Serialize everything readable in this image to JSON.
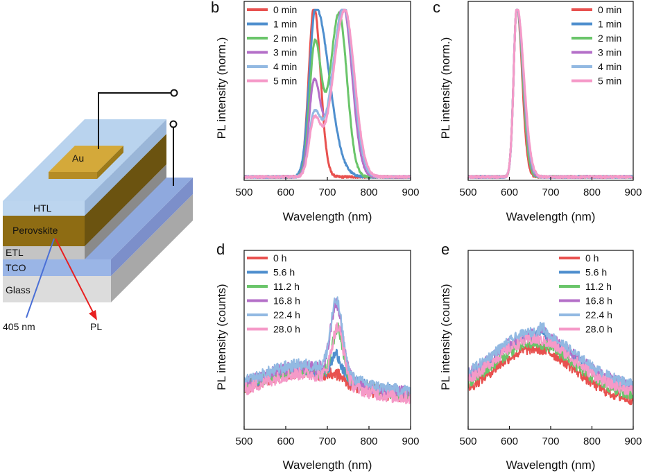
{
  "colors": {
    "red": "#e8514f",
    "blue": "#4f8fce",
    "green": "#6ac56a",
    "purple": "#b46fc8",
    "lightblue": "#92b9e2",
    "pink": "#f59ac8"
  },
  "schematic": {
    "layers": [
      "Au",
      "HTL",
      "Perovskite",
      "ETL",
      "TCO",
      "Glass"
    ],
    "excitation_label": "405 nm",
    "emission_label": "PL"
  },
  "chart_data": [
    {
      "panel": "b",
      "type": "line",
      "xlabel": "Wavelength (nm)",
      "ylabel": "PL intensity (norm.)",
      "xlim": [
        500,
        900
      ],
      "xticks": [
        500,
        600,
        700,
        800,
        900
      ],
      "ylim": [
        0,
        1.05
      ],
      "legend_position": "top-left",
      "series": [
        {
          "name": "0 min",
          "color": "red",
          "peaks": [
            {
              "center": 668,
              "height": 1.0,
              "width_left": 18,
              "width_right": 22
            }
          ]
        },
        {
          "name": "1 min",
          "color": "blue",
          "peaks": [
            {
              "center": 672,
              "height": 1.0,
              "width_left": 21,
              "width_right": 45
            }
          ]
        },
        {
          "name": "2 min",
          "color": "green",
          "peaks": [
            {
              "center": 670,
              "height": 0.78,
              "width_left": 18,
              "width_right": 22
            },
            {
              "center": 728,
              "height": 0.96,
              "width_left": 30,
              "width_right": 27
            }
          ]
        },
        {
          "name": "3 min",
          "color": "purple",
          "peaks": [
            {
              "center": 668,
              "height": 0.55,
              "width_left": 17,
              "width_right": 22
            },
            {
              "center": 738,
              "height": 1.0,
              "width_left": 36,
              "width_right": 30
            }
          ]
        },
        {
          "name": "4 min",
          "color": "lightblue",
          "peaks": [
            {
              "center": 668,
              "height": 0.35,
              "width_left": 17,
              "width_right": 22
            },
            {
              "center": 740,
              "height": 1.0,
              "width_left": 40,
              "width_right": 32
            }
          ]
        },
        {
          "name": "5 min",
          "color": "pink",
          "peaks": [
            {
              "center": 668,
              "height": 0.32,
              "width_left": 17,
              "width_right": 22
            },
            {
              "center": 742,
              "height": 0.98,
              "width_left": 40,
              "width_right": 33
            }
          ]
        }
      ]
    },
    {
      "panel": "c",
      "type": "line",
      "xlabel": "Wavelength (nm)",
      "ylabel": "PL intensity (norm.)",
      "xlim": [
        500,
        900
      ],
      "xticks": [
        500,
        600,
        700,
        800,
        900
      ],
      "ylim": [
        0,
        1.05
      ],
      "legend_position": "top-right",
      "series": [
        {
          "name": "0 min",
          "color": "red",
          "peaks": [
            {
              "center": 618,
              "height": 1.0,
              "width_left": 11,
              "width_right": 18
            }
          ]
        },
        {
          "name": "1 min",
          "color": "blue",
          "peaks": [
            {
              "center": 618,
              "height": 1.0,
              "width_left": 11,
              "width_right": 20
            }
          ]
        },
        {
          "name": "2 min",
          "color": "green",
          "peaks": [
            {
              "center": 618,
              "height": 1.0,
              "width_left": 11,
              "width_right": 20
            }
          ]
        },
        {
          "name": "3 min",
          "color": "purple",
          "peaks": [
            {
              "center": 618,
              "height": 1.0,
              "width_left": 11,
              "width_right": 22
            }
          ]
        },
        {
          "name": "4 min",
          "color": "lightblue",
          "peaks": [
            {
              "center": 618,
              "height": 1.0,
              "width_left": 11,
              "width_right": 23
            }
          ]
        },
        {
          "name": "5 min",
          "color": "pink",
          "peaks": [
            {
              "center": 618,
              "height": 1.0,
              "width_left": 11,
              "width_right": 24
            }
          ]
        }
      ]
    },
    {
      "panel": "d",
      "type": "line",
      "xlabel": "Wavelength (nm)",
      "ylabel": "PL intensity (counts)",
      "xlim": [
        500,
        900
      ],
      "xticks": [
        500,
        600,
        700,
        800,
        900
      ],
      "ylim": [
        0,
        1
      ],
      "legend_position": "top-left",
      "series": [
        {
          "name": "0 h",
          "color": "red",
          "base": 0.18,
          "broad": 0.14,
          "broad_center": 640,
          "peak_center": 722,
          "peak_height": 0.03,
          "peak_width": 18,
          "noise": 0.035
        },
        {
          "name": "5.6 h",
          "color": "blue",
          "base": 0.2,
          "broad": 0.14,
          "broad_center": 640,
          "peak_center": 722,
          "peak_height": 0.12,
          "peak_width": 16,
          "noise": 0.035
        },
        {
          "name": "11.2 h",
          "color": "green",
          "base": 0.19,
          "broad": 0.14,
          "broad_center": 640,
          "peak_center": 725,
          "peak_height": 0.28,
          "peak_width": 18,
          "noise": 0.035
        },
        {
          "name": "16.8 h",
          "color": "purple",
          "base": 0.2,
          "broad": 0.15,
          "broad_center": 640,
          "peak_center": 722,
          "peak_height": 0.4,
          "peak_width": 20,
          "noise": 0.035
        },
        {
          "name": "22.4 h",
          "color": "lightblue",
          "base": 0.21,
          "broad": 0.15,
          "broad_center": 640,
          "peak_center": 722,
          "peak_height": 0.4,
          "peak_width": 20,
          "noise": 0.035
        },
        {
          "name": "28.0 h",
          "color": "pink",
          "base": 0.17,
          "broad": 0.14,
          "broad_center": 640,
          "peak_center": 725,
          "peak_height": 0.3,
          "peak_width": 20,
          "noise": 0.035
        }
      ]
    },
    {
      "panel": "e",
      "type": "line",
      "xlabel": "Wavelength (nm)",
      "ylabel": "PL intensity (counts)",
      "xlim": [
        500,
        900
      ],
      "xticks": [
        500,
        600,
        700,
        800,
        900
      ],
      "ylim": [
        0,
        1
      ],
      "legend_position": "top-right",
      "series": [
        {
          "name": "0 h",
          "color": "red",
          "base": 0.15,
          "broad": 0.3,
          "broad_center": 660,
          "peak_center": 680,
          "peak_height": 0.0,
          "peak_width": 10,
          "noise": 0.03
        },
        {
          "name": "5.6 h",
          "color": "blue",
          "base": 0.22,
          "broad": 0.3,
          "broad_center": 660,
          "peak_center": 680,
          "peak_height": 0.04,
          "peak_width": 10,
          "noise": 0.03
        },
        {
          "name": "11.2 h",
          "color": "green",
          "base": 0.18,
          "broad": 0.3,
          "broad_center": 660,
          "peak_center": 680,
          "peak_height": 0.0,
          "peak_width": 10,
          "noise": 0.03
        },
        {
          "name": "16.8 h",
          "color": "purple",
          "base": 0.23,
          "broad": 0.3,
          "broad_center": 660,
          "peak_center": 680,
          "peak_height": 0.04,
          "peak_width": 10,
          "noise": 0.03
        },
        {
          "name": "22.4 h",
          "color": "lightblue",
          "base": 0.24,
          "broad": 0.3,
          "broad_center": 660,
          "peak_center": 680,
          "peak_height": 0.04,
          "peak_width": 10,
          "noise": 0.03
        },
        {
          "name": "28.0 h",
          "color": "pink",
          "base": 0.2,
          "broad": 0.3,
          "broad_center": 660,
          "peak_center": 680,
          "peak_height": 0.0,
          "peak_width": 10,
          "noise": 0.03
        }
      ]
    }
  ]
}
